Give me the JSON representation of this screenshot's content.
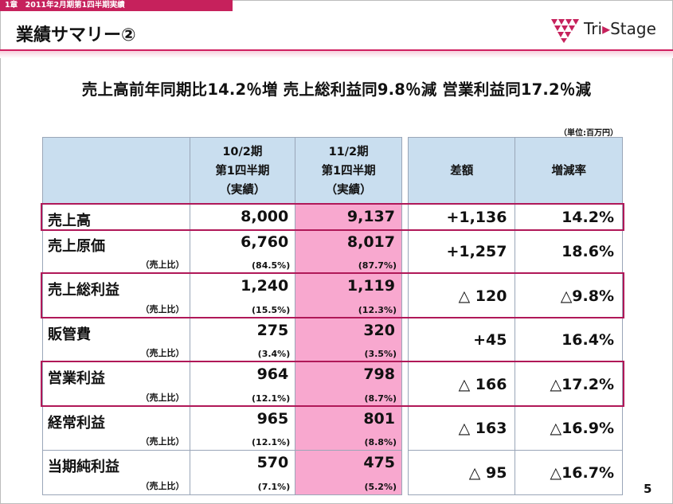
{
  "header": {
    "chapter": "1章　2011年2月期第1四半期実績",
    "title": "業績サマリー②",
    "logo": {
      "prefix": "Tri",
      "arrow": "▸",
      "suffix": "Stage"
    }
  },
  "headline": "売上高前年同期比14.2％増 売上総利益同9.8％減 営業利益同17.2％減",
  "unit": "（単位:百万円）",
  "table": {
    "headers": {
      "prev": [
        "10/2期",
        "第1四半期",
        "（実績）"
      ],
      "curr": [
        "11/2期",
        "第1四半期",
        "（実績）"
      ],
      "diff": "差額",
      "rate": "増減率"
    },
    "rows": [
      {
        "label": "売上高",
        "sub": "",
        "prev": "8,000",
        "prev_ratio": "",
        "curr": "9,137",
        "curr_ratio": "",
        "diff": "+1,136",
        "rate": "14.2%"
      },
      {
        "label": "売上原価",
        "sub": "（売上比）",
        "prev": "6,760",
        "prev_ratio": "(84.5%)",
        "curr": "8,017",
        "curr_ratio": "(87.7%)",
        "diff": "+1,257",
        "rate": "18.6%"
      },
      {
        "label": "売上総利益",
        "sub": "（売上比）",
        "prev": "1,240",
        "prev_ratio": "(15.5%)",
        "curr": "1,119",
        "curr_ratio": "(12.3%)",
        "diff": "△ 120",
        "rate": "△9.8%"
      },
      {
        "label": "販管費",
        "sub": "（売上比）",
        "prev": "275",
        "prev_ratio": "(3.4%)",
        "curr": "320",
        "curr_ratio": "(3.5%)",
        "diff": "+45",
        "rate": "16.4%"
      },
      {
        "label": "営業利益",
        "sub": "（売上比）",
        "prev": "964",
        "prev_ratio": "(12.1%)",
        "curr": "798",
        "curr_ratio": "(8.7%)",
        "diff": "△ 166",
        "rate": "△17.2%"
      },
      {
        "label": "経常利益",
        "sub": "（売上比）",
        "prev": "965",
        "prev_ratio": "(12.1%)",
        "curr": "801",
        "curr_ratio": "(8.8%)",
        "diff": "△ 163",
        "rate": "△16.9%"
      },
      {
        "label": "当期純利益",
        "sub": "（売上比）",
        "prev": "570",
        "prev_ratio": "(7.1%)",
        "curr": "475",
        "curr_ratio": "(5.2%)",
        "diff": "△ 95",
        "rate": "△16.7%"
      }
    ]
  },
  "page_number": "5"
}
